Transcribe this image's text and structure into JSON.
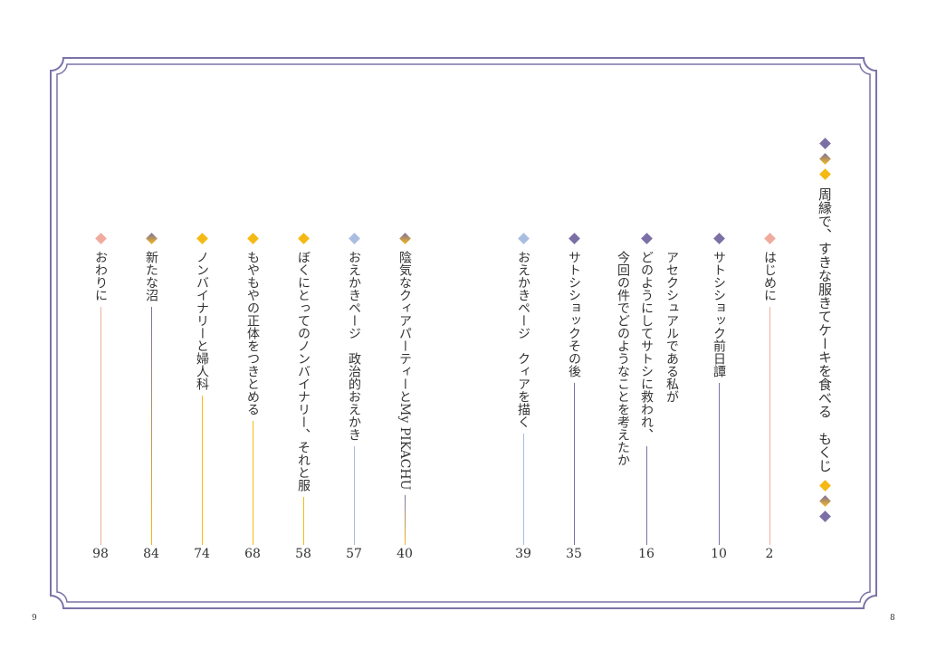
{
  "colors": {
    "purple": "#7b6fa6",
    "pink": "#f0ab9f",
    "yellow": "#f5b914",
    "blue": "#a9bde0",
    "frame": "#7b72a8"
  },
  "title": "周縁で、すきな服きてケーキを食べる　もくじ",
  "entries": [
    {
      "title": "はじめに",
      "page": "2",
      "color": "pink"
    },
    {
      "title": "サトシショック前日譚",
      "page": "10",
      "color": "purple"
    },
    {
      "subtitle": "アセクシュアルである私が",
      "title": "どのようにしてサトシに救われ、",
      "title2": "今回の件でどのようなことを考えたか",
      "page": "16",
      "color": "purple"
    },
    {
      "title": "サトシショックその後",
      "page": "35",
      "color": "purple"
    },
    {
      "title": "おえかきページ　クィアを描く",
      "page": "39",
      "color": "blue"
    },
    {
      "title": "陰気なクィアパーティーとMy PIKACHU",
      "page": "40",
      "color": "gradient"
    },
    {
      "title": "おえかきページ　政治的おえかき",
      "page": "57",
      "color": "blue"
    },
    {
      "title": "ぼくにとってのノンバイナリー、それと服",
      "page": "58",
      "color": "yellow"
    },
    {
      "title": "もやもやの正体をつきとめる",
      "page": "68",
      "color": "yellow"
    },
    {
      "title": "ノンバイナリーと婦人科",
      "page": "74",
      "color": "yellow"
    },
    {
      "title": "新たな沼",
      "page": "84",
      "color": "gradient"
    },
    {
      "title": "おわりに",
      "page": "98",
      "color": "pink"
    }
  ],
  "page_numbers": {
    "left": "9",
    "right": "8"
  }
}
